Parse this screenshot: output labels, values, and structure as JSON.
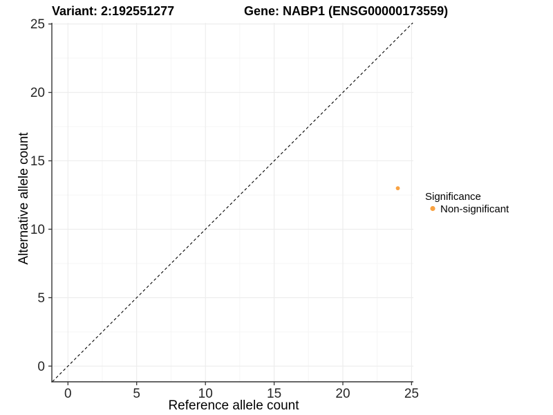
{
  "chart_data": {
    "type": "scatter",
    "title_left": "Variant: 2:192551277",
    "title_right": "Gene: NABP1 (ENSG00000173559)",
    "xlabel": "Reference allele count",
    "ylabel": "Alternative allele count",
    "xlim": [
      -1.15,
      25.15
    ],
    "ylim": [
      -1.15,
      25.15
    ],
    "x_ticks": [
      0,
      5,
      10,
      15,
      20,
      25
    ],
    "y_ticks": [
      0,
      5,
      10,
      15,
      20,
      25
    ],
    "x_tick_labels": [
      "0",
      "5",
      "10",
      "15",
      "20",
      "25"
    ],
    "y_tick_labels": [
      "0",
      "5",
      "10",
      "15",
      "20",
      "25"
    ],
    "grid": "major+minor, light gray on white",
    "reference_line": {
      "type": "identity y=x",
      "style": "dashed",
      "color": "#000000"
    },
    "series": [
      {
        "name": "Non-significant",
        "color": "#F9A242",
        "points": [
          {
            "x": 24,
            "y": 13
          }
        ]
      }
    ],
    "legend": {
      "title": "Significance",
      "position": "right",
      "entries": [
        {
          "label": "Non-significant",
          "color": "#F9A242",
          "marker": "circle"
        }
      ]
    },
    "background": "#FFFFFF",
    "axis_color": "#333333"
  }
}
